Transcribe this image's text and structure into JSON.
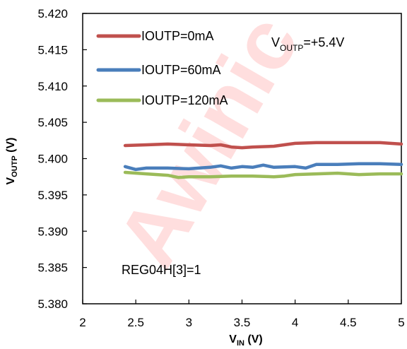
{
  "watermark_text": "Awinic",
  "chart_data": {
    "type": "line",
    "xlabel_main": "V",
    "xlabel_sub": "IN",
    "xlabel_unit": " (V)",
    "ylabel_main": "V",
    "ylabel_sub": "OUTP",
    "ylabel_unit": " (V)",
    "xlim": [
      2,
      5
    ],
    "ylim": [
      5.38,
      5.42
    ],
    "x_ticks": [
      "2",
      "2.5",
      "3",
      "3.5",
      "4",
      "4.5",
      "5"
    ],
    "x_tick_values": [
      2,
      2.5,
      3,
      3.5,
      4,
      4.5,
      5
    ],
    "y_ticks": [
      "5.420",
      "5.415",
      "5.410",
      "5.405",
      "5.400",
      "5.395",
      "5.390",
      "5.385",
      "5.380"
    ],
    "y_tick_values": [
      5.42,
      5.415,
      5.41,
      5.405,
      5.4,
      5.395,
      5.39,
      5.385,
      5.38
    ],
    "grid": false,
    "legend_position": "top-left",
    "annotations": {
      "vout_main": "V",
      "vout_sub": "OUTP",
      "vout_value": "=+5.4V",
      "reg": "REG04H[3]=1"
    },
    "series": [
      {
        "name": "IOUTP=0mA",
        "color": "#c0504d",
        "x": [
          2.4,
          2.6,
          2.8,
          3.0,
          3.2,
          3.3,
          3.4,
          3.5,
          3.6,
          3.8,
          4.0,
          4.2,
          4.4,
          4.6,
          4.8,
          5.0
        ],
        "y": [
          5.4018,
          5.4019,
          5.402,
          5.4019,
          5.4018,
          5.4019,
          5.4016,
          5.4015,
          5.4016,
          5.4017,
          5.4021,
          5.4022,
          5.4022,
          5.4022,
          5.4022,
          5.402
        ]
      },
      {
        "name": "IOUTP=60mA",
        "color": "#4a7ebb",
        "x": [
          2.4,
          2.5,
          2.6,
          2.8,
          3.0,
          3.2,
          3.3,
          3.4,
          3.5,
          3.6,
          3.7,
          3.8,
          4.0,
          4.1,
          4.2,
          4.4,
          4.6,
          4.8,
          5.0
        ],
        "y": [
          5.3989,
          5.3985,
          5.3987,
          5.3987,
          5.3986,
          5.3988,
          5.399,
          5.3987,
          5.3989,
          5.3988,
          5.3991,
          5.3988,
          5.3989,
          5.3987,
          5.3992,
          5.3992,
          5.3993,
          5.3993,
          5.3992
        ]
      },
      {
        "name": "IOUTP=120mA",
        "color": "#9bbb59",
        "x": [
          2.4,
          2.6,
          2.8,
          2.9,
          3.0,
          3.2,
          3.4,
          3.6,
          3.8,
          3.9,
          4.0,
          4.2,
          4.4,
          4.6,
          4.8,
          5.0
        ],
        "y": [
          5.3981,
          5.3979,
          5.3977,
          5.3974,
          5.3975,
          5.3975,
          5.3976,
          5.3976,
          5.3975,
          5.3976,
          5.3978,
          5.3979,
          5.398,
          5.3978,
          5.3979,
          5.3979
        ]
      }
    ]
  }
}
